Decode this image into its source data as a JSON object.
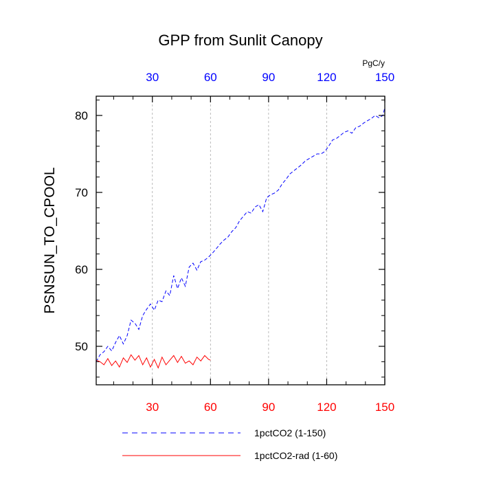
{
  "chart_data": {
    "type": "line",
    "title": "GPP from Sunlit Canopy",
    "ylabel": "PSNSUN_TO_CPOOL",
    "top_axis_unit": "PgC/y",
    "xlim": [
      1,
      150
    ],
    "ylim": [
      45,
      82.5
    ],
    "x_ticks": [
      30,
      60,
      90,
      120,
      150
    ],
    "y_ticks": [
      50,
      60,
      70,
      80
    ],
    "grid": "vertical-dashed",
    "legend_position": "bottom",
    "series": [
      {
        "name": "1pctCO2 (1-150)",
        "color": "#0000ff",
        "style": "dashed",
        "x": [
          1,
          3,
          5,
          7,
          9,
          11,
          13,
          15,
          17,
          19,
          21,
          23,
          25,
          27,
          29,
          31,
          33,
          35,
          37,
          39,
          41,
          43,
          45,
          47,
          49,
          51,
          53,
          55,
          57,
          59,
          61,
          63,
          65,
          67,
          69,
          71,
          73,
          75,
          77,
          79,
          81,
          83,
          85,
          87,
          89,
          91,
          93,
          95,
          97,
          99,
          101,
          103,
          105,
          107,
          109,
          111,
          113,
          115,
          117,
          119,
          121,
          123,
          125,
          127,
          129,
          131,
          133,
          135,
          137,
          139,
          141,
          143,
          145,
          147,
          149,
          150
        ],
        "y": [
          48.0,
          48.9,
          49.3,
          50.0,
          49.4,
          50.5,
          51.4,
          50.3,
          51.4,
          53.4,
          53.0,
          52.2,
          54.0,
          54.8,
          55.5,
          54.7,
          56.0,
          55.8,
          57.2,
          56.6,
          59.2,
          57.5,
          58.9,
          57.8,
          60.3,
          60.8,
          59.9,
          61.0,
          61.2,
          61.6,
          62.1,
          62.7,
          63.3,
          63.8,
          64.2,
          64.9,
          65.4,
          66.3,
          66.9,
          67.5,
          67.3,
          68.1,
          68.4,
          67.5,
          69.3,
          69.7,
          69.9,
          70.3,
          71.1,
          71.7,
          72.4,
          72.8,
          73.2,
          73.6,
          74.1,
          74.4,
          74.7,
          75.0,
          75.0,
          75.3,
          76.0,
          76.8,
          77.0,
          77.4,
          77.8,
          78.0,
          77.7,
          78.4,
          78.6,
          79.0,
          79.3,
          79.6,
          80.0,
          79.7,
          80.0,
          81.0
        ]
      },
      {
        "name": "1pctCO2-rad (1-60)",
        "color": "#ff0000",
        "style": "solid",
        "x": [
          1,
          3,
          5,
          7,
          9,
          11,
          13,
          15,
          17,
          19,
          21,
          23,
          25,
          27,
          29,
          31,
          33,
          35,
          37,
          39,
          41,
          43,
          45,
          47,
          49,
          51,
          53,
          55,
          57,
          59,
          60
        ],
        "y": [
          48.2,
          48.0,
          47.6,
          48.4,
          47.5,
          48.1,
          47.3,
          48.5,
          47.9,
          48.9,
          48.2,
          48.8,
          47.6,
          48.5,
          47.3,
          48.3,
          47.2,
          48.6,
          47.6,
          48.2,
          48.8,
          47.9,
          48.7,
          47.8,
          48.1,
          47.6,
          48.6,
          48.1,
          48.8,
          48.3,
          48.2
        ]
      }
    ]
  }
}
